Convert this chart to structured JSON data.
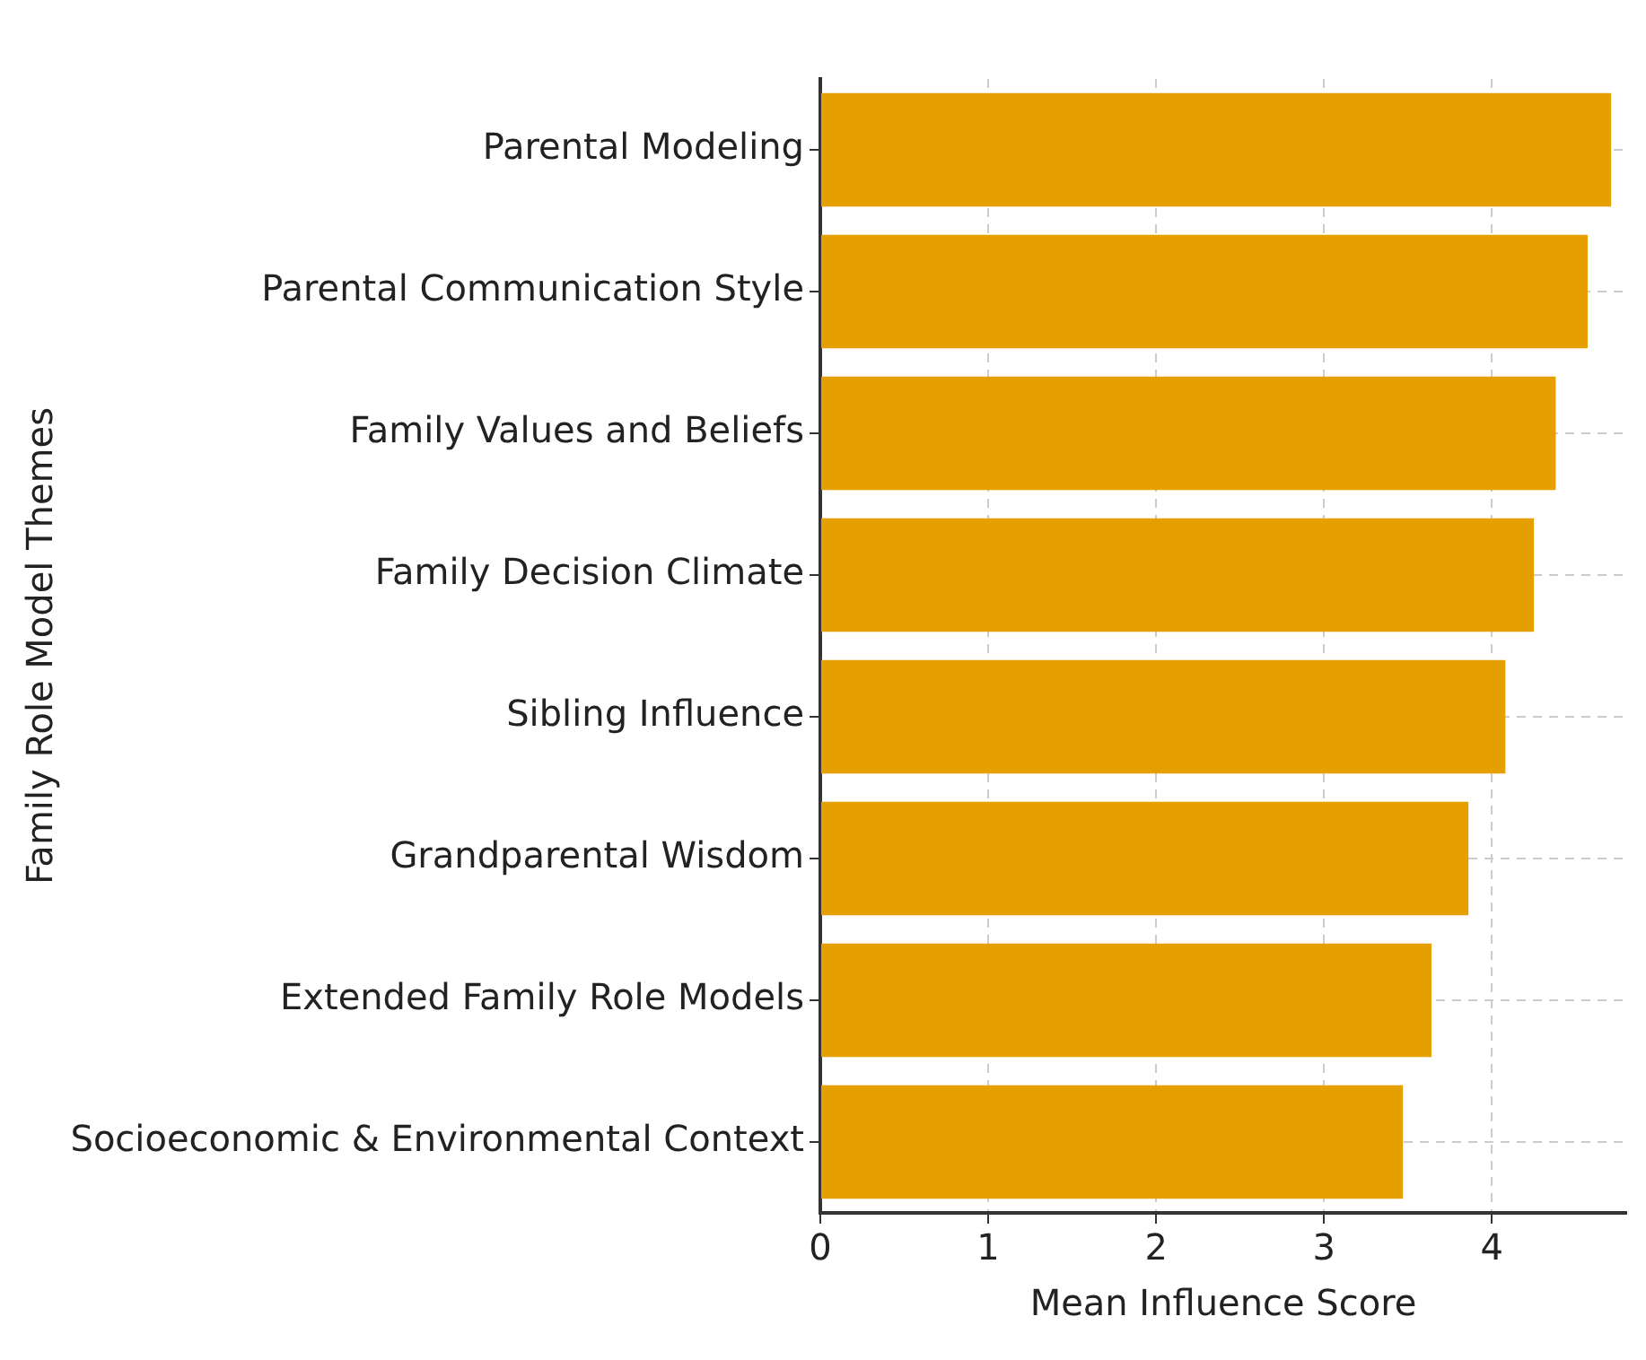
{
  "chart_data": {
    "type": "bar",
    "orientation": "horizontal",
    "xlabel": "Mean Influence Score",
    "ylabel": "Family Role Model Themes",
    "categories": [
      "Parental Modeling",
      "Parental Communication Style",
      "Family Values and Beliefs",
      "Family Decision Climate",
      "Sibling Influence",
      "Grandparental Wisdom",
      "Extended Family Role Models",
      "Socioeconomic & Environmental Context"
    ],
    "values": [
      4.71,
      4.57,
      4.38,
      4.25,
      4.08,
      3.86,
      3.64,
      3.47
    ],
    "color": "#e69f00",
    "xlim": [
      0,
      4.8
    ],
    "xticks": [
      0,
      1,
      2,
      3,
      4
    ],
    "grid": true
  }
}
